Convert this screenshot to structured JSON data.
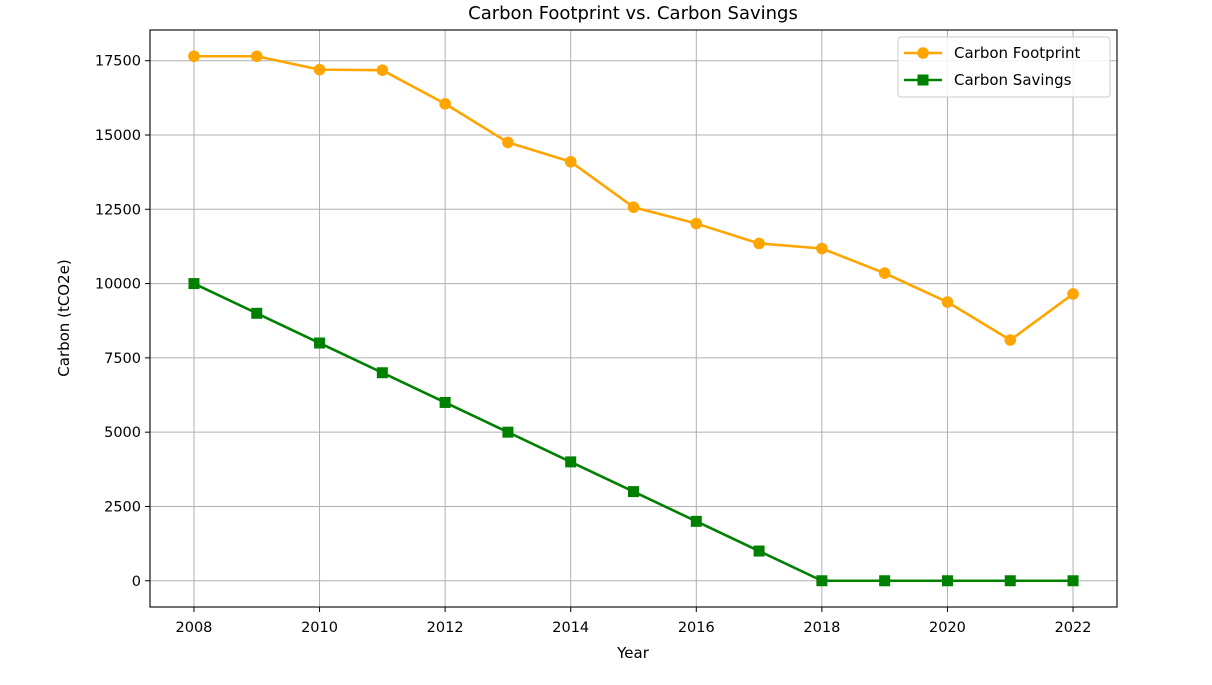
{
  "chart_data": {
    "type": "line",
    "title": "Carbon Footprint vs. Carbon Savings",
    "xlabel": "Year",
    "ylabel": "Carbon (tCO2e)",
    "x": [
      2008,
      2009,
      2010,
      2011,
      2012,
      2013,
      2014,
      2015,
      2016,
      2017,
      2018,
      2019,
      2020,
      2021,
      2022
    ],
    "series": [
      {
        "name": "Carbon Footprint",
        "color": "#FFA500",
        "marker": "circle",
        "values": [
          17650,
          17650,
          17200,
          17180,
          16050,
          14750,
          14100,
          12570,
          12020,
          11350,
          11180,
          10350,
          9380,
          8100,
          9650
        ]
      },
      {
        "name": "Carbon Savings",
        "color": "#008000",
        "marker": "square",
        "values": [
          10000,
          9000,
          8000,
          7000,
          6000,
          5000,
          4000,
          3000,
          2000,
          1000,
          0,
          0,
          0,
          0,
          0
        ]
      }
    ],
    "xticks": [
      2008,
      2010,
      2012,
      2014,
      2016,
      2018,
      2020,
      2022
    ],
    "yticks": [
      0,
      2500,
      5000,
      7500,
      10000,
      12500,
      15000,
      17500
    ],
    "xlim": [
      2007.3,
      2022.7
    ],
    "ylim": [
      -883,
      18533
    ],
    "grid": true,
    "legend_position": "upper right"
  }
}
